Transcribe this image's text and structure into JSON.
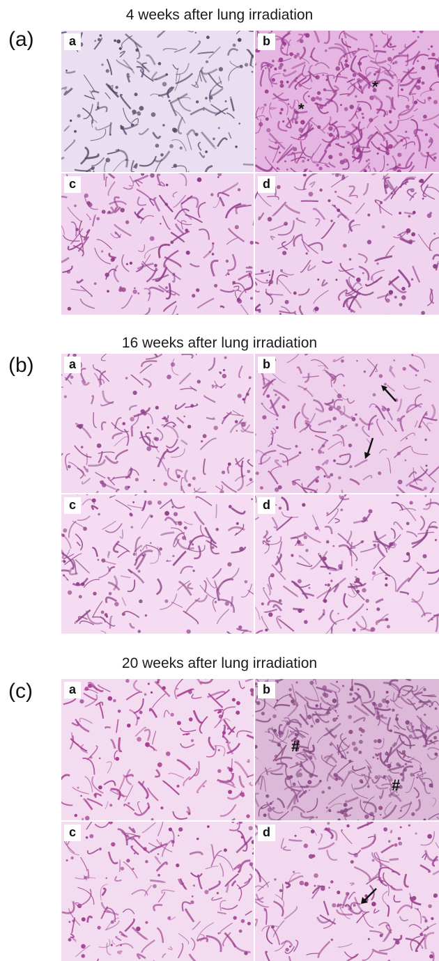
{
  "figure": {
    "sections": [
      {
        "label": "(a)",
        "title": "4 weeks after lung irradiation",
        "panels": [
          {
            "label": "a",
            "stain": "#e9dff0",
            "tissue": "#5a4a6a",
            "marks": []
          },
          {
            "label": "b",
            "stain": "#e5b6e2",
            "tissue": "#9a3d8e",
            "marks": [
              "*",
              "*"
            ]
          },
          {
            "label": "c",
            "stain": "#f1d4ef",
            "tissue": "#8f3b88",
            "marks": []
          },
          {
            "label": "d",
            "stain": "#f0d3ee",
            "tissue": "#8c3c86",
            "marks": []
          }
        ]
      },
      {
        "label": "(b)",
        "title": "16 weeks after lung irradiation",
        "panels": [
          {
            "label": "a",
            "stain": "#f3daf1",
            "tissue": "#93468c",
            "marks": []
          },
          {
            "label": "b",
            "stain": "#efd0ec",
            "tissue": "#9b4c94",
            "marks": [
              "arrow",
              "arrow"
            ]
          },
          {
            "label": "c",
            "stain": "#f5dcf3",
            "tissue": "#8e4488",
            "marks": []
          },
          {
            "label": "d",
            "stain": "#f4dbf2",
            "tissue": "#8f4289",
            "marks": []
          }
        ]
      },
      {
        "label": "(c)",
        "title": "20 weeks after lung irradiation",
        "panels": [
          {
            "label": "a",
            "stain": "#f3dcef",
            "tissue": "#a43b8f",
            "marks": []
          },
          {
            "label": "b",
            "stain": "#dcb9d8",
            "tissue": "#8a4b86",
            "marks": [
              "#",
              "#"
            ]
          },
          {
            "label": "c",
            "stain": "#f3dcf0",
            "tissue": "#9d3f8e",
            "marks": []
          },
          {
            "label": "d",
            "stain": "#f2d9ef",
            "tissue": "#983f8b",
            "marks": [
              "arrow"
            ]
          }
        ]
      }
    ]
  }
}
